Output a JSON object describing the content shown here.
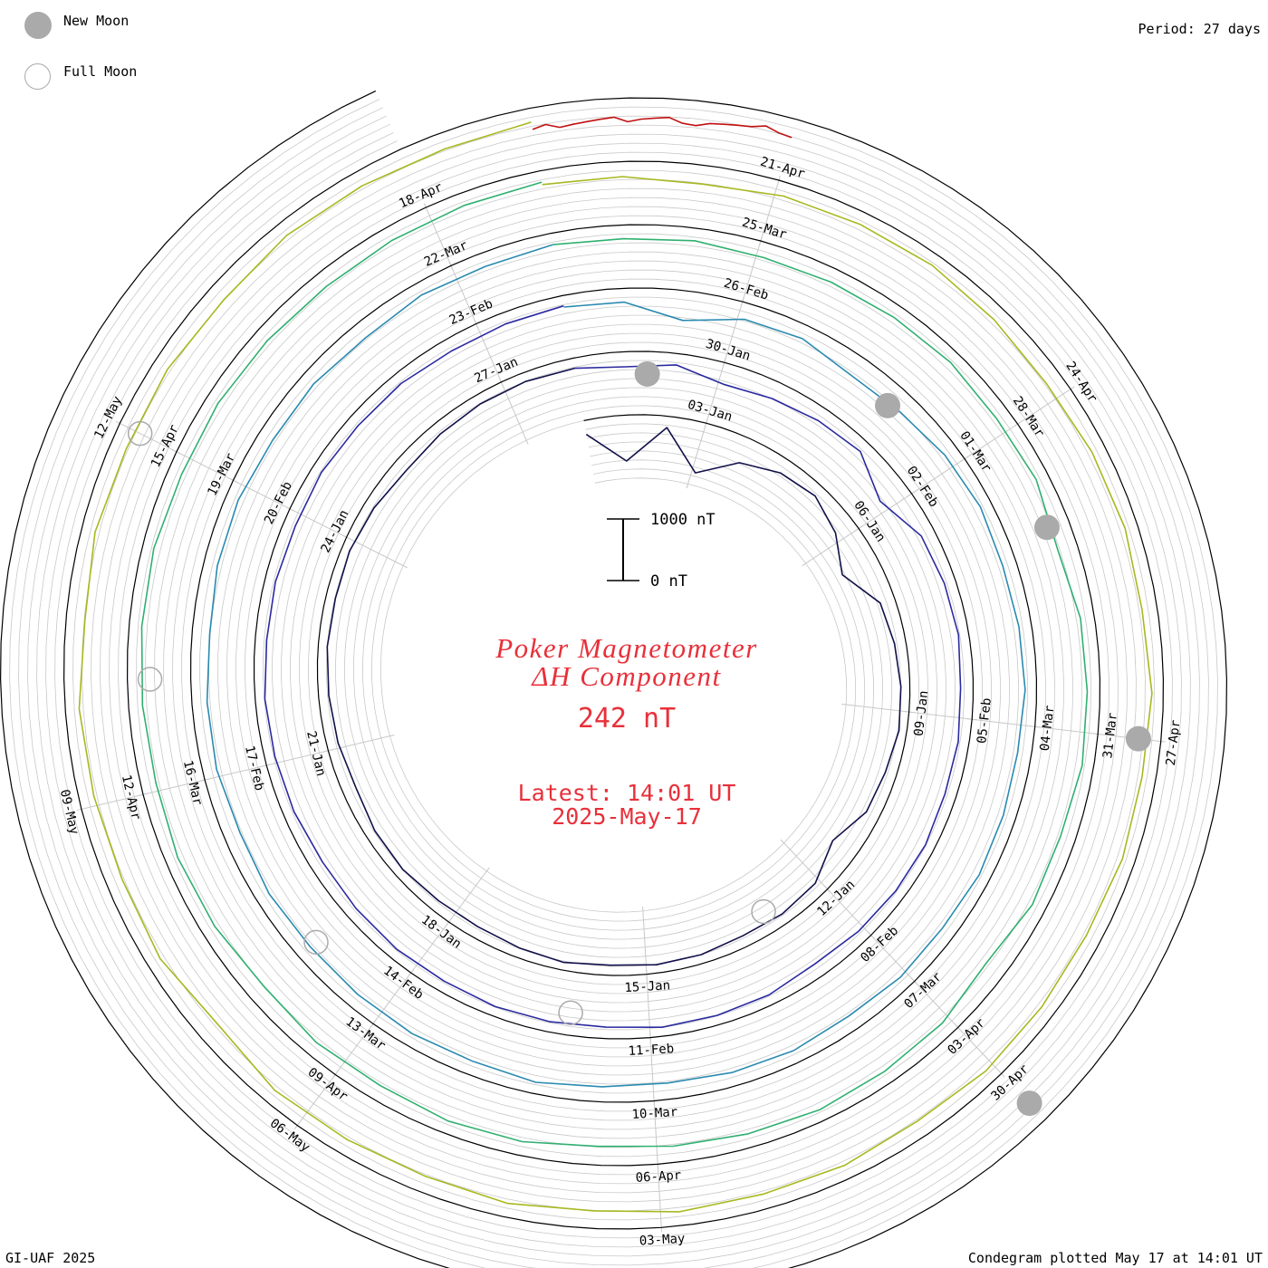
{
  "legend": {
    "new_moon_label": "New Moon",
    "full_moon_label": "Full Moon"
  },
  "period_label": "Period: 27 days",
  "footer_left": "GI-UAF 2025",
  "footer_right": "Condegram plotted May 17 at 14:01 UT",
  "title_line1": "Poker Magnetometer",
  "title_line2": "ΔH Component",
  "current_value": "242 nT",
  "latest_line1": "Latest: 14:01 UT",
  "latest_line2": "2025-May-17",
  "scale_bar": {
    "top_label": "1000 nT",
    "bottom_label": "0 nT"
  },
  "colors": {
    "title": "#e8303a",
    "grid": "#c8c8c8",
    "baseline": "#000000",
    "moon": "#aaaaaa"
  },
  "chart_data": {
    "type": "line",
    "title": "Poker Magnetometer ΔH Component",
    "unit": "nT",
    "period_days": 27,
    "spiral_start": "2025-01-01",
    "latest": "2025-05-17 14:01 UT",
    "date_labels": [
      "03-Jan",
      "06-Jan",
      "09-Jan",
      "12-Jan",
      "15-Jan",
      "18-Jan",
      "21-Jan",
      "24-Jan",
      "27-Jan",
      "30-Jan",
      "02-Feb",
      "05-Feb",
      "08-Feb",
      "11-Feb",
      "14-Feb",
      "17-Feb",
      "20-Feb",
      "23-Feb",
      "26-Feb",
      "01-Mar",
      "04-Mar",
      "07-Mar",
      "10-Mar",
      "13-Mar",
      "16-Mar",
      "19-Mar",
      "22-Mar",
      "25-Mar",
      "28-Mar",
      "31-Mar",
      "03-Apr",
      "06-Apr",
      "09-Apr",
      "12-Apr",
      "15-Apr",
      "18-Apr",
      "21-Apr",
      "24-Apr",
      "27-Apr",
      "30-Apr",
      "03-May",
      "06-May",
      "09-May",
      "12-May"
    ],
    "series": [
      {
        "cycle": 1,
        "start": "2025-01-01",
        "color": "#10104a",
        "values": [
          300,
          820,
          260,
          900,
          500,
          320,
          260,
          420,
          700,
          320,
          260,
          220,
          200,
          260,
          300,
          520,
          280,
          240,
          260,
          220,
          210,
          240,
          200,
          230,
          260,
          250,
          220,
          240,
          300,
          260,
          240,
          220,
          230,
          210,
          240,
          300,
          260,
          230,
          220,
          240
        ]
      },
      {
        "cycle": 2,
        "start": "2025-01-28",
        "color": "#2a2aa0",
        "values": [
          240,
          320,
          260,
          420,
          360,
          300,
          260,
          560,
          300,
          260,
          240,
          280,
          250,
          260,
          230,
          240,
          260,
          300,
          240,
          230,
          220,
          260,
          240,
          230,
          250,
          240,
          260,
          280,
          250,
          240,
          230,
          260,
          250,
          270,
          240,
          260,
          250,
          280,
          260,
          240
        ]
      },
      {
        "cycle": 3,
        "start": "2025-02-24",
        "color": "#2a8ab0",
        "values": [
          260,
          300,
          560,
          340,
          300,
          420,
          380,
          300,
          260,
          300,
          280,
          260,
          300,
          280,
          260,
          300,
          280,
          320,
          280,
          300,
          340,
          320,
          260,
          300,
          280,
          300,
          320,
          300,
          340,
          300,
          320,
          360,
          300,
          280,
          320,
          300,
          340,
          280,
          300,
          260
        ]
      },
      {
        "cycle": 4,
        "start": "2025-03-23",
        "color": "#30b070",
        "values": [
          260,
          300,
          280,
          320,
          300,
          280,
          260,
          300,
          280,
          400,
          300,
          280,
          260,
          320,
          300,
          420,
          300,
          280,
          260,
          300,
          340,
          380,
          300,
          280,
          320,
          300,
          360,
          300,
          280,
          320,
          300,
          280,
          260,
          300,
          280,
          300,
          320,
          300,
          280,
          260
        ]
      },
      {
        "cycle": 5,
        "start": "2025-04-19",
        "color": "#a8b820",
        "values": [
          300,
          320,
          380,
          300,
          280,
          260,
          300,
          340,
          300,
          280,
          320,
          260,
          300,
          280,
          320,
          300,
          280,
          340,
          300,
          320,
          300,
          360,
          300,
          340,
          320,
          300,
          420,
          300,
          340,
          320,
          300,
          380,
          300,
          340,
          320,
          360,
          300,
          320,
          340,
          300
        ]
      },
      {
        "cycle": 6,
        "start": "2025-05-16",
        "color": "#c01010",
        "values": [
          420,
          380,
          460,
          440,
          420,
          400,
          380,
          460,
          420,
          400,
          380,
          460,
          480,
          420,
          400,
          380,
          360,
          300,
          360,
          380
        ]
      }
    ],
    "new_moons": [
      "2025-01-29",
      "2025-02-28",
      "2025-03-29",
      "2025-04-27",
      "2025-05-27"
    ],
    "full_moons": [
      "2025-01-13",
      "2025-02-12",
      "2025-03-14",
      "2025-04-13",
      "2025-05-12"
    ]
  }
}
